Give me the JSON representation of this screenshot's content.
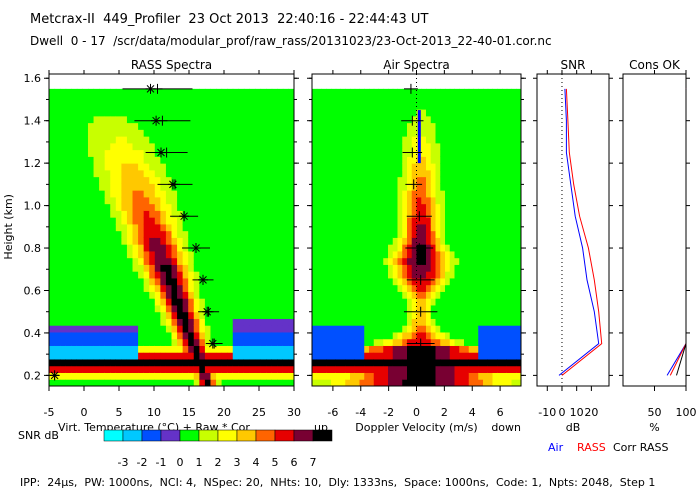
{
  "header": {
    "title": "Metcrax-II  449_Profiler  23 Oct 2013  22:40:16 - 22:44:43 UT",
    "subtitle": "Dwell  0 - 17  /scr/data/modular_prof/raw_rass/20131023/23-Oct-2013_22-40-01.cor.nc"
  },
  "footer": "IPP:  24μs,  PW: 1000ns,  NCI: 4,  NSpec: 20,  NHts: 10,  Dly: 1333ns,  Space: 1000ns,  Code: 1,  Npts: 2048,  Step 1",
  "chart_data": [
    {
      "type": "heatmap",
      "title": "RASS Spectra",
      "xlabel": "Virt. Temperature (°C)  + Raw  * Cor",
      "ylabel": "Height (km)",
      "xlim": [
        -5,
        30
      ],
      "ylim": [
        0.15,
        1.62
      ],
      "xticks": [
        -5,
        0,
        5,
        10,
        15,
        20,
        25,
        30
      ],
      "yticks": [
        0.2,
        0.4,
        0.6,
        0.8,
        1.0,
        1.2,
        1.4,
        1.6
      ],
      "ytick_labels": [
        "0.2",
        "0.4",
        "0.6",
        "0.8",
        "1.0",
        "1.2",
        "1.4",
        "1.6"
      ],
      "background_level": 0,
      "raw_points": [
        {
          "height": 0.2,
          "temp": -4.2,
          "err": 0.6
        },
        {
          "height": 0.35,
          "temp": 18.6,
          "err": 1.2
        },
        {
          "height": 0.5,
          "temp": 17.8,
          "err": 1.5
        },
        {
          "height": 0.65,
          "temp": 17.0,
          "err": 1.5
        },
        {
          "height": 0.8,
          "temp": 16.0,
          "err": 2.0
        },
        {
          "height": 0.95,
          "temp": 14.3,
          "err": 2.0
        },
        {
          "height": 1.1,
          "temp": 13.0,
          "err": 2.5
        },
        {
          "height": 1.25,
          "temp": 11.8,
          "err": 3.0
        },
        {
          "height": 1.4,
          "temp": 11.2,
          "err": 4.0
        },
        {
          "height": 1.55,
          "temp": 10.5,
          "err": 5.0
        }
      ],
      "cor_points": [
        {
          "height": 0.2,
          "temp": -4.2
        },
        {
          "height": 0.35,
          "temp": 18.4
        },
        {
          "height": 0.5,
          "temp": 17.6
        },
        {
          "height": 0.65,
          "temp": 17.0
        },
        {
          "height": 0.8,
          "temp": 16.0
        },
        {
          "height": 0.95,
          "temp": 14.3
        },
        {
          "height": 1.1,
          "temp": 12.7
        },
        {
          "height": 1.25,
          "temp": 11.0
        },
        {
          "height": 1.4,
          "temp": 10.3
        },
        {
          "height": 1.55,
          "temp": 9.5
        }
      ]
    },
    {
      "type": "heatmap",
      "title": "Air Spectra",
      "xlabel": "Doppler Velocity (m/s)",
      "xlabel_left": "up",
      "xlabel_right": "down",
      "xlim": [
        -7.5,
        7.5
      ],
      "ylim": [
        0.15,
        1.62
      ],
      "xticks": [
        -6,
        -4,
        -2,
        0,
        2,
        4,
        6
      ],
      "background_level": 0,
      "points": [
        {
          "height": 0.2,
          "vel": 0.0,
          "err": 0.3
        },
        {
          "height": 0.35,
          "vel": 0.3,
          "err": 1.0
        },
        {
          "height": 0.5,
          "vel": 0.3,
          "err": 1.2
        },
        {
          "height": 0.65,
          "vel": 0.3,
          "err": 1.0
        },
        {
          "height": 0.8,
          "vel": 0.2,
          "err": 1.0
        },
        {
          "height": 0.95,
          "vel": 0.2,
          "err": 0.9
        },
        {
          "height": 1.1,
          "vel": -0.2,
          "err": 0.6
        },
        {
          "height": 1.25,
          "vel": -0.3,
          "err": 0.7
        },
        {
          "height": 1.4,
          "vel": -0.3,
          "err": 0.8
        },
        {
          "height": 1.55,
          "vel": -0.4,
          "err": 0.5
        }
      ]
    },
    {
      "type": "line",
      "title": "SNR",
      "xlabel": "dB",
      "xlim": [
        -17,
        32
      ],
      "xticks": [
        -10,
        0,
        10,
        20
      ],
      "xtick_labels": [
        "-10",
        "0",
        "10",
        "20"
      ],
      "zero_line": 0,
      "series": [
        {
          "name": "Air",
          "color": "#0000ff",
          "height": [
            0.2,
            0.35,
            0.5,
            0.65,
            0.8,
            0.95,
            1.1,
            1.25,
            1.4,
            1.55
          ],
          "values": [
            -2,
            25,
            22,
            17,
            14,
            9,
            6,
            3,
            3,
            2
          ]
        },
        {
          "name": "RASS",
          "color": "#ff0000",
          "height": [
            0.2,
            0.35,
            0.5,
            0.65,
            0.8,
            0.95,
            1.1,
            1.25,
            1.4,
            1.55
          ],
          "values": [
            0,
            27,
            25,
            22,
            18,
            12,
            8,
            5,
            4,
            3
          ]
        }
      ]
    },
    {
      "type": "line",
      "title": "Cons OK",
      "xlabel": "%",
      "xlim": [
        0,
        100
      ],
      "xticks": [
        50,
        100
      ],
      "series": [
        {
          "name": "Air",
          "color": "#0000ff",
          "height": [
            0.2,
            0.35,
            0.5,
            0.65,
            0.8,
            0.95,
            1.1,
            1.25,
            1.4,
            1.55
          ],
          "values": [
            70,
            100,
            100,
            100,
            100,
            100,
            100,
            100,
            100,
            100
          ]
        },
        {
          "name": "RASS",
          "color": "#ff0000",
          "height": [
            0.2,
            0.35,
            0.5,
            0.65,
            0.8,
            0.95,
            1.1,
            1.25,
            1.4,
            1.55
          ],
          "values": [
            75,
            100,
            100,
            100,
            100,
            100,
            100,
            100,
            100,
            100
          ]
        },
        {
          "name": "Corr RASS",
          "color": "#000000",
          "height": [
            0.2,
            0.35,
            0.5,
            0.65,
            0.8,
            0.95,
            1.1,
            1.25,
            1.4,
            1.55
          ],
          "values": [
            85,
            100,
            100,
            100,
            100,
            100,
            100,
            100,
            100,
            100
          ]
        }
      ]
    }
  ],
  "colorbar": {
    "label": "SNR dB",
    "ticks": [
      "-3",
      "-2",
      "-1",
      "0",
      "1",
      "2",
      "3",
      "4",
      "5",
      "6",
      "7"
    ],
    "colors": [
      "#00ffff",
      "#00c8ff",
      "#0050ff",
      "#6432c8",
      "#00ff00",
      "#c8ff00",
      "#ffff00",
      "#ffc800",
      "#ff6400",
      "#e60000",
      "#780032",
      "#000000"
    ]
  },
  "legend": [
    {
      "label": "Air",
      "color": "#0000ff"
    },
    {
      "label": "RASS",
      "color": "#ff0000"
    },
    {
      "label": "Corr RASS",
      "color": "#000000"
    }
  ]
}
